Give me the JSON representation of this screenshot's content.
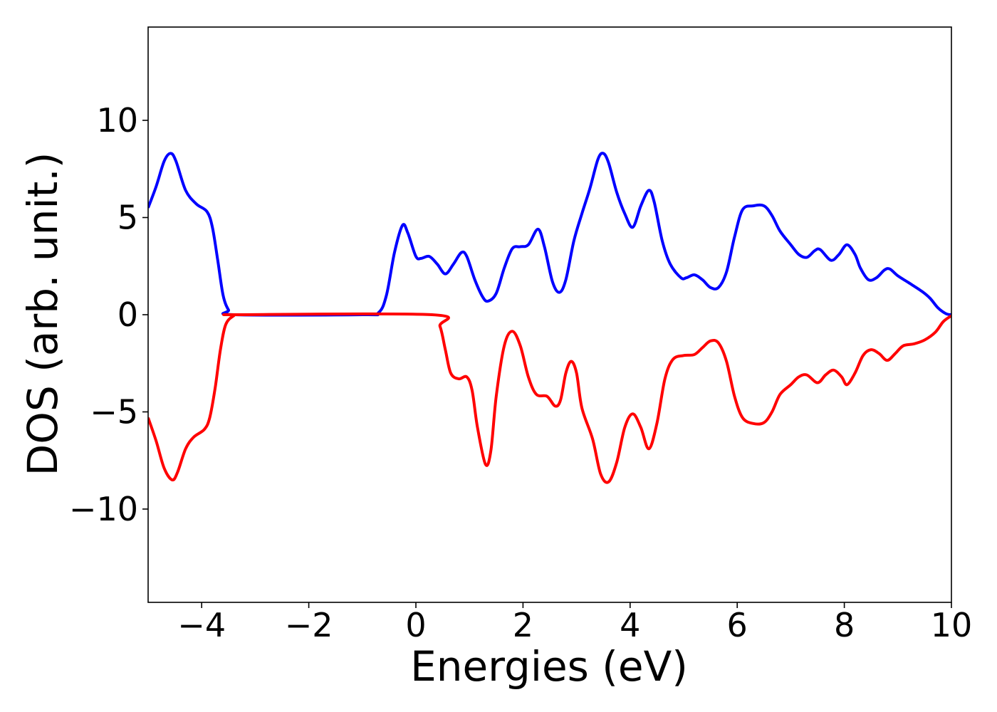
{
  "chart_data": {
    "type": "line",
    "title": "",
    "xlabel": "Energies (eV)",
    "ylabel": "DOS (arb. unit.)",
    "xlim": [
      -5,
      10
    ],
    "ylim": [
      -14.8,
      14.8
    ],
    "grid": false,
    "legend": "none",
    "x_ticks": [
      {
        "value": -4,
        "label": "−4"
      },
      {
        "value": -2,
        "label": "−2"
      },
      {
        "value": 0,
        "label": "0"
      },
      {
        "value": 2,
        "label": "2"
      },
      {
        "value": 4,
        "label": "4"
      },
      {
        "value": 6,
        "label": "6"
      },
      {
        "value": 8,
        "label": "8"
      },
      {
        "value": 10,
        "label": "10"
      }
    ],
    "y_ticks": [
      {
        "value": 10,
        "label": "10"
      },
      {
        "value": 5,
        "label": "5"
      },
      {
        "value": 0,
        "label": "0"
      },
      {
        "value": -5,
        "label": "−5"
      },
      {
        "value": -10,
        "label": "−10"
      }
    ],
    "series": [
      {
        "color": "#0000ff",
        "points": [
          [
            -5.0,
            5.5
          ],
          [
            -4.85,
            6.6
          ],
          [
            -4.7,
            7.9
          ],
          [
            -4.58,
            8.3
          ],
          [
            -4.48,
            7.9
          ],
          [
            -4.3,
            6.4
          ],
          [
            -4.1,
            5.7
          ],
          [
            -3.9,
            5.3
          ],
          [
            -3.8,
            4.5
          ],
          [
            -3.7,
            2.8
          ],
          [
            -3.6,
            1.0
          ],
          [
            -3.5,
            0.25
          ],
          [
            -3.4,
            0.0
          ],
          [
            -1.0,
            0.0
          ],
          [
            -0.7,
            0.1
          ],
          [
            -0.55,
            1.0
          ],
          [
            -0.4,
            3.2
          ],
          [
            -0.25,
            4.6
          ],
          [
            -0.15,
            4.2
          ],
          [
            0.0,
            3.0
          ],
          [
            0.1,
            2.9
          ],
          [
            0.25,
            3.0
          ],
          [
            0.4,
            2.6
          ],
          [
            0.55,
            2.1
          ],
          [
            0.7,
            2.6
          ],
          [
            0.85,
            3.2
          ],
          [
            0.95,
            3.0
          ],
          [
            1.1,
            1.8
          ],
          [
            1.25,
            0.9
          ],
          [
            1.35,
            0.7
          ],
          [
            1.5,
            1.1
          ],
          [
            1.65,
            2.4
          ],
          [
            1.8,
            3.4
          ],
          [
            1.95,
            3.5
          ],
          [
            2.1,
            3.6
          ],
          [
            2.28,
            4.4
          ],
          [
            2.4,
            3.5
          ],
          [
            2.55,
            1.7
          ],
          [
            2.68,
            1.15
          ],
          [
            2.8,
            1.8
          ],
          [
            2.95,
            3.8
          ],
          [
            3.1,
            5.2
          ],
          [
            3.25,
            6.5
          ],
          [
            3.4,
            8.0
          ],
          [
            3.5,
            8.3
          ],
          [
            3.6,
            7.8
          ],
          [
            3.75,
            6.3
          ],
          [
            3.9,
            5.2
          ],
          [
            4.05,
            4.5
          ],
          [
            4.2,
            5.6
          ],
          [
            4.35,
            6.4
          ],
          [
            4.45,
            5.8
          ],
          [
            4.6,
            3.8
          ],
          [
            4.75,
            2.6
          ],
          [
            4.95,
            1.9
          ],
          [
            5.05,
            1.9
          ],
          [
            5.2,
            2.05
          ],
          [
            5.35,
            1.8
          ],
          [
            5.5,
            1.4
          ],
          [
            5.65,
            1.4
          ],
          [
            5.8,
            2.2
          ],
          [
            5.95,
            4.0
          ],
          [
            6.1,
            5.4
          ],
          [
            6.3,
            5.6
          ],
          [
            6.5,
            5.6
          ],
          [
            6.65,
            5.1
          ],
          [
            6.8,
            4.3
          ],
          [
            7.0,
            3.6
          ],
          [
            7.15,
            3.1
          ],
          [
            7.3,
            2.95
          ],
          [
            7.45,
            3.3
          ],
          [
            7.55,
            3.35
          ],
          [
            7.75,
            2.8
          ],
          [
            7.9,
            3.1
          ],
          [
            8.05,
            3.6
          ],
          [
            8.2,
            3.1
          ],
          [
            8.3,
            2.4
          ],
          [
            8.45,
            1.8
          ],
          [
            8.6,
            1.9
          ],
          [
            8.75,
            2.3
          ],
          [
            8.85,
            2.35
          ],
          [
            9.0,
            2.0
          ],
          [
            9.2,
            1.65
          ],
          [
            9.45,
            1.2
          ],
          [
            9.6,
            0.85
          ],
          [
            9.75,
            0.35
          ],
          [
            9.9,
            0.05
          ],
          [
            10.0,
            0.0
          ]
        ]
      },
      {
        "color": "#ff0000",
        "points": [
          [
            -5.0,
            -5.3
          ],
          [
            -4.85,
            -6.5
          ],
          [
            -4.7,
            -7.9
          ],
          [
            -4.55,
            -8.5
          ],
          [
            -4.45,
            -8.1
          ],
          [
            -4.3,
            -6.9
          ],
          [
            -4.15,
            -6.3
          ],
          [
            -3.95,
            -5.9
          ],
          [
            -3.85,
            -5.3
          ],
          [
            -3.75,
            -3.8
          ],
          [
            -3.65,
            -1.8
          ],
          [
            -3.55,
            -0.5
          ],
          [
            -3.4,
            -0.05
          ],
          [
            -3.3,
            0.0
          ],
          [
            0.3,
            0.0
          ],
          [
            0.45,
            -0.6
          ],
          [
            0.55,
            -1.8
          ],
          [
            0.65,
            -3.0
          ],
          [
            0.8,
            -3.3
          ],
          [
            0.95,
            -3.2
          ],
          [
            1.05,
            -3.9
          ],
          [
            1.15,
            -5.8
          ],
          [
            1.3,
            -7.7
          ],
          [
            1.4,
            -7.0
          ],
          [
            1.5,
            -4.2
          ],
          [
            1.65,
            -1.6
          ],
          [
            1.8,
            -0.85
          ],
          [
            1.95,
            -1.6
          ],
          [
            2.1,
            -3.2
          ],
          [
            2.25,
            -4.1
          ],
          [
            2.45,
            -4.2
          ],
          [
            2.6,
            -4.7
          ],
          [
            2.7,
            -4.4
          ],
          [
            2.8,
            -3.0
          ],
          [
            2.9,
            -2.4
          ],
          [
            3.0,
            -3.0
          ],
          [
            3.1,
            -4.8
          ],
          [
            3.3,
            -6.4
          ],
          [
            3.45,
            -8.2
          ],
          [
            3.6,
            -8.6
          ],
          [
            3.75,
            -7.6
          ],
          [
            3.9,
            -5.8
          ],
          [
            4.05,
            -5.1
          ],
          [
            4.2,
            -5.8
          ],
          [
            4.35,
            -6.9
          ],
          [
            4.5,
            -5.6
          ],
          [
            4.65,
            -3.3
          ],
          [
            4.8,
            -2.3
          ],
          [
            5.0,
            -2.1
          ],
          [
            5.2,
            -2.05
          ],
          [
            5.35,
            -1.7
          ],
          [
            5.5,
            -1.35
          ],
          [
            5.65,
            -1.45
          ],
          [
            5.8,
            -2.4
          ],
          [
            5.95,
            -4.2
          ],
          [
            6.1,
            -5.3
          ],
          [
            6.3,
            -5.6
          ],
          [
            6.5,
            -5.55
          ],
          [
            6.65,
            -5.0
          ],
          [
            6.8,
            -4.1
          ],
          [
            7.0,
            -3.6
          ],
          [
            7.15,
            -3.2
          ],
          [
            7.3,
            -3.1
          ],
          [
            7.5,
            -3.5
          ],
          [
            7.65,
            -3.1
          ],
          [
            7.8,
            -2.85
          ],
          [
            7.95,
            -3.2
          ],
          [
            8.05,
            -3.6
          ],
          [
            8.2,
            -3.0
          ],
          [
            8.35,
            -2.1
          ],
          [
            8.5,
            -1.8
          ],
          [
            8.65,
            -2.0
          ],
          [
            8.8,
            -2.35
          ],
          [
            8.95,
            -2.0
          ],
          [
            9.1,
            -1.6
          ],
          [
            9.3,
            -1.5
          ],
          [
            9.5,
            -1.3
          ],
          [
            9.7,
            -0.9
          ],
          [
            9.85,
            -0.35
          ],
          [
            10.0,
            -0.05
          ]
        ]
      }
    ]
  }
}
